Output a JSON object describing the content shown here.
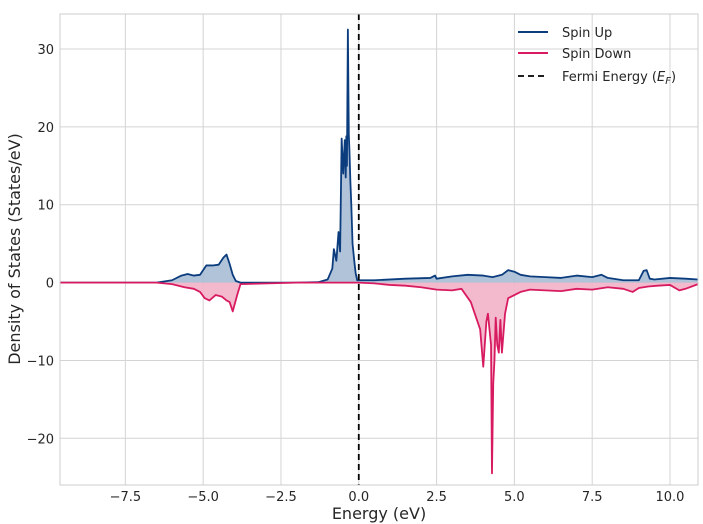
{
  "chart_data": {
    "type": "area",
    "xlabel": "Energy (eV)",
    "ylabel": "Density of States (States/eV)",
    "xlim": [
      -9.6,
      10.9
    ],
    "ylim": [
      -26,
      34.5
    ],
    "xticks": [
      -7.5,
      -5.0,
      -2.5,
      0.0,
      2.5,
      5.0,
      7.5,
      10.0
    ],
    "xtick_labels": [
      "−7.5",
      "−5.0",
      "−2.5",
      "0.0",
      "2.5",
      "5.0",
      "7.5",
      "10.0"
    ],
    "yticks": [
      -20,
      -10,
      0,
      10,
      20,
      30
    ],
    "ytick_labels": [
      "−20",
      "−10",
      "0",
      "10",
      "20",
      "30"
    ],
    "grid": true,
    "legend_position": "top-right",
    "fermi_energy": 0.0,
    "series": [
      {
        "name": "Spin Up",
        "color": "#0b3d7e",
        "fill": "#a9bcd4",
        "x": [
          -9.6,
          -6.5,
          -6.0,
          -5.7,
          -5.5,
          -5.3,
          -5.1,
          -4.9,
          -4.7,
          -4.5,
          -4.35,
          -4.25,
          -4.15,
          -4.05,
          -3.95,
          -3.8,
          -2.0,
          -1.3,
          -1.0,
          -0.85,
          -0.8,
          -0.72,
          -0.65,
          -0.6,
          -0.55,
          -0.5,
          -0.45,
          -0.42,
          -0.4,
          -0.38,
          -0.35,
          -0.32,
          -0.3,
          -0.27,
          -0.24,
          -0.2,
          -0.15,
          -0.1,
          -0.05,
          0.0,
          0.1,
          0.5,
          1.5,
          2.3,
          2.45,
          2.5,
          3.0,
          3.5,
          4.0,
          4.3,
          4.6,
          4.8,
          5.0,
          5.2,
          5.5,
          6.0,
          6.5,
          7.0,
          7.5,
          7.8,
          8.0,
          8.5,
          9.0,
          9.15,
          9.25,
          9.35,
          9.5,
          10.0,
          10.5,
          10.9
        ],
        "values": [
          0.0,
          0.0,
          0.3,
          0.9,
          1.1,
          0.9,
          1.0,
          2.2,
          2.2,
          2.3,
          3.2,
          3.6,
          2.4,
          1.0,
          0.2,
          0.0,
          0.0,
          0.05,
          0.4,
          1.8,
          4.3,
          2.8,
          6.5,
          4.0,
          18.5,
          14.0,
          18.3,
          13.5,
          18.8,
          15.0,
          32.5,
          19.0,
          17.0,
          13.0,
          10.0,
          5.0,
          3.0,
          1.2,
          0.3,
          0.3,
          0.3,
          0.3,
          0.5,
          0.6,
          0.9,
          0.5,
          0.8,
          1.0,
          0.9,
          0.7,
          1.0,
          1.6,
          1.4,
          1.0,
          0.8,
          0.7,
          0.6,
          0.9,
          0.7,
          1.0,
          0.6,
          0.3,
          0.3,
          1.5,
          1.6,
          0.5,
          0.4,
          0.6,
          0.5,
          0.4
        ]
      },
      {
        "name": "Spin Down",
        "color": "#d81b60",
        "fill": "#f2b3c8",
        "x": [
          -9.6,
          -6.5,
          -6.0,
          -5.6,
          -5.3,
          -5.1,
          -4.95,
          -4.8,
          -4.6,
          -4.4,
          -4.25,
          -4.15,
          -4.05,
          -3.9,
          -3.8,
          -2.0,
          -1.0,
          -0.5,
          0.0,
          0.5,
          1.0,
          1.5,
          2.0,
          2.5,
          3.0,
          3.3,
          3.6,
          3.9,
          4.0,
          4.1,
          4.15,
          4.2,
          4.25,
          4.28,
          4.32,
          4.36,
          4.4,
          4.45,
          4.5,
          4.55,
          4.6,
          4.7,
          4.8,
          5.0,
          5.2,
          5.5,
          6.0,
          6.5,
          7.0,
          7.5,
          8.0,
          8.5,
          8.8,
          9.0,
          9.3,
          9.6,
          10.0,
          10.3,
          10.5,
          10.9
        ],
        "values": [
          0.0,
          0.0,
          -0.2,
          -0.6,
          -0.8,
          -1.2,
          -2.0,
          -2.3,
          -1.6,
          -1.8,
          -2.3,
          -2.5,
          -3.7,
          -1.5,
          -0.2,
          0.0,
          0.0,
          0.0,
          0.0,
          -0.1,
          -0.3,
          -0.4,
          -0.6,
          -0.9,
          -1.0,
          -0.8,
          -2.5,
          -6.0,
          -10.8,
          -5.0,
          -4.0,
          -6.0,
          -8.0,
          -24.5,
          -13.0,
          -10.0,
          -4.5,
          -8.0,
          -9.0,
          -4.8,
          -9.0,
          -4.0,
          -2.0,
          -1.6,
          -1.2,
          -0.9,
          -1.0,
          -1.1,
          -0.8,
          -0.9,
          -0.6,
          -0.8,
          -1.2,
          -0.7,
          -0.5,
          -0.4,
          -0.3,
          -1.0,
          -0.8,
          -0.2
        ]
      }
    ],
    "legend": [
      {
        "label": "Spin Up",
        "color": "#0b3d7e",
        "style": "solid"
      },
      {
        "label": "Spin Down",
        "color": "#d81b60",
        "style": "solid"
      },
      {
        "label": "Fermi Energy (",
        "math": "E",
        "sub": "F",
        "close": ")",
        "color": "#000000",
        "style": "dashed"
      }
    ]
  }
}
